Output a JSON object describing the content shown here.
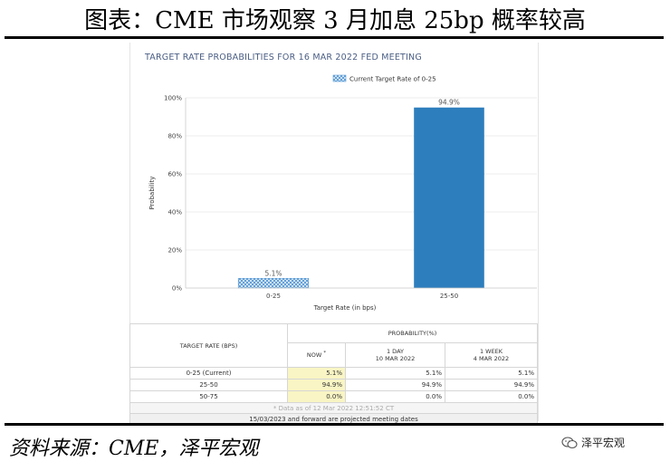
{
  "header": {
    "title": "图表：CME 市场观察 3 月加息 25bp 概率较高"
  },
  "footer": {
    "source": "资料来源：CME，泽平宏观",
    "brand": "泽平宏观",
    "brand_icon": "wechat-icon"
  },
  "chart_data": {
    "type": "bar",
    "title": "TARGET RATE PROBABILITIES FOR 16 MAR 2022 FED MEETING",
    "legend": {
      "label": "Current Target Rate of 0-25",
      "placement": "top-center"
    },
    "categories": [
      "0-25",
      "25-50"
    ],
    "series": [
      {
        "name": "Current Target Rate of 0-25",
        "values": [
          5.1,
          94.9
        ]
      }
    ],
    "value_labels": [
      "5.1%",
      "94.9%"
    ],
    "bar_colors": [
      "#5b9bd5",
      "#2d7ebd"
    ],
    "bar_patterns": [
      "crosshatch",
      "solid"
    ],
    "xlabel": "Target Rate (in bps)",
    "ylabel": "Probability",
    "ylim": [
      0,
      100
    ],
    "yticks": [
      0,
      20,
      40,
      60,
      80,
      100
    ],
    "ytick_labels": [
      "0%",
      "20%",
      "40%",
      "60%",
      "80%",
      "100%"
    ],
    "grid": true
  },
  "table": {
    "rate_header": "TARGET RATE (BPS)",
    "prob_header": "PROBABILITY(%)",
    "now_header": "NOW",
    "now_marker": "*",
    "day_header": "1 DAY",
    "day_date": "10 MAR 2022",
    "week_header": "1 WEEK",
    "week_date": "4 MAR 2022",
    "rows": [
      {
        "rate": "0-25 (Current)",
        "now": "5.1%",
        "day": "5.1%",
        "week": "5.1%"
      },
      {
        "rate": "25-50",
        "now": "94.9%",
        "day": "94.9%",
        "week": "94.9%"
      },
      {
        "rate": "50-75",
        "now": "0.0%",
        "day": "0.0%",
        "week": "0.0%"
      }
    ],
    "footnote": "* Data as of 12 Mar 2022 12:51:52 CT",
    "note": "15/03/2023 and forward are projected meeting dates"
  }
}
